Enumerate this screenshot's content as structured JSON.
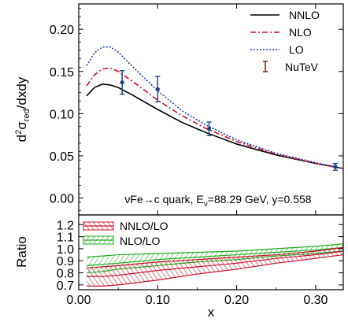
{
  "chart_data": [
    {
      "type": "line",
      "panel": "top",
      "ylabel_parts": {
        "d": "d",
        "sup": "2",
        "sigma": "σ",
        "sub": "red",
        "rest": "/dxdy"
      },
      "ylim": [
        -0.02,
        0.23
      ],
      "xlim": [
        0.0,
        0.335
      ],
      "yticks": [
        "0.00",
        "0.05",
        "0.10",
        "0.15",
        "0.20"
      ],
      "ytick_values": [
        0.0,
        0.05,
        0.1,
        0.15,
        0.2
      ],
      "annotation": {
        "pre": "νFe→c quark, E",
        "sub": "ν",
        "post": "=88.29 GeV, y=0.558"
      },
      "legend_position": "top-right",
      "series": [
        {
          "name": "NNLO",
          "color": "#000000",
          "dash": "solid",
          "x": [
            0.01,
            0.02,
            0.03,
            0.04,
            0.05,
            0.07,
            0.1,
            0.13,
            0.16,
            0.2,
            0.25,
            0.3,
            0.335
          ],
          "y": [
            0.121,
            0.131,
            0.135,
            0.134,
            0.131,
            0.121,
            0.105,
            0.09,
            0.078,
            0.064,
            0.051,
            0.041,
            0.035
          ]
        },
        {
          "name": "NLO",
          "color": "#c8102e",
          "dash": "dashdot",
          "x": [
            0.01,
            0.02,
            0.03,
            0.04,
            0.05,
            0.07,
            0.1,
            0.13,
            0.16,
            0.2,
            0.25,
            0.3,
            0.335
          ],
          "y": [
            0.133,
            0.146,
            0.153,
            0.154,
            0.15,
            0.137,
            0.116,
            0.098,
            0.083,
            0.067,
            0.052,
            0.041,
            0.035
          ]
        },
        {
          "name": "LO",
          "color": "#1f3fbf",
          "dash": "dotted",
          "x": [
            0.01,
            0.02,
            0.03,
            0.04,
            0.05,
            0.07,
            0.1,
            0.13,
            0.16,
            0.2,
            0.25,
            0.3,
            0.335
          ],
          "y": [
            0.157,
            0.172,
            0.179,
            0.179,
            0.173,
            0.154,
            0.127,
            0.104,
            0.087,
            0.069,
            0.053,
            0.042,
            0.035
          ]
        }
      ],
      "points": {
        "name": "NuTeV",
        "color": "#1f3f7f",
        "legend_color": "#a0522d",
        "x": [
          0.055,
          0.1,
          0.165,
          0.325
        ],
        "y": [
          0.137,
          0.129,
          0.082,
          0.037
        ],
        "err": [
          0.014,
          0.015,
          0.008,
          0.004
        ]
      }
    },
    {
      "type": "area",
      "panel": "bottom",
      "ylabel": "Ratio",
      "xlabel": "x",
      "ylim": [
        0.66,
        1.28
      ],
      "xlim": [
        0.0,
        0.335
      ],
      "yticks": [
        "0.7",
        "0.8",
        "0.9",
        "1.0",
        "1.1",
        "1.2"
      ],
      "ytick_values": [
        0.7,
        0.8,
        0.9,
        1.0,
        1.1,
        1.2
      ],
      "xticks": [
        "0.00",
        "0.10",
        "0.20",
        "0.30"
      ],
      "xtick_values": [
        0.0,
        0.1,
        0.2,
        0.3
      ],
      "legend_position": "top-left",
      "bands": [
        {
          "name": "NLO/LO",
          "color": "#22aa22",
          "x": [
            0.01,
            0.03,
            0.05,
            0.1,
            0.15,
            0.2,
            0.25,
            0.3,
            0.335
          ],
          "upper": [
            0.93,
            0.94,
            0.95,
            0.96,
            0.97,
            0.98,
            1.0,
            1.02,
            1.04
          ],
          "center": [
            0.86,
            0.87,
            0.88,
            0.91,
            0.93,
            0.95,
            0.97,
            0.99,
            1.01
          ],
          "lower": [
            0.8,
            0.81,
            0.83,
            0.86,
            0.89,
            0.91,
            0.94,
            0.96,
            0.98
          ]
        },
        {
          "name": "NNLO/LO",
          "color": "#c8102e",
          "x": [
            0.01,
            0.03,
            0.05,
            0.1,
            0.15,
            0.2,
            0.25,
            0.3,
            0.335
          ],
          "upper": [
            0.84,
            0.85,
            0.86,
            0.89,
            0.91,
            0.93,
            0.95,
            0.98,
            1.01
          ],
          "center": [
            0.77,
            0.77,
            0.78,
            0.82,
            0.85,
            0.88,
            0.92,
            0.95,
            0.98
          ],
          "lower": [
            0.69,
            0.69,
            0.7,
            0.74,
            0.79,
            0.83,
            0.88,
            0.92,
            0.95
          ]
        }
      ]
    }
  ]
}
